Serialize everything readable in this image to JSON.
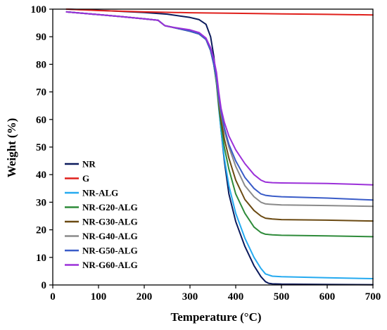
{
  "chart_data": {
    "type": "line",
    "xlabel": "Temperature (°C)",
    "ylabel": "Weight (%)",
    "xlim": [
      0,
      700
    ],
    "ylim": [
      0,
      100
    ],
    "xticks": [
      0,
      100,
      200,
      300,
      400,
      500,
      600,
      700
    ],
    "yticks": [
      0,
      10,
      20,
      30,
      40,
      50,
      60,
      70,
      80,
      90,
      100
    ],
    "grid": false,
    "legend_position": "bottom-left",
    "series": [
      {
        "name": "NR",
        "color": "#0b1a5c",
        "x": [
          30,
          100,
          200,
          250,
          300,
          320,
          335,
          345,
          352,
          358,
          363,
          368,
          375,
          385,
          400,
          420,
          440,
          455,
          465,
          472,
          480,
          500,
          600,
          700
        ],
        "y": [
          100,
          99.6,
          98.8,
          98.2,
          97,
          96.2,
          94.5,
          90,
          83,
          74,
          65,
          56,
          45,
          33,
          23,
          14,
          7,
          3,
          1.2,
          0.6,
          0.4,
          0.3,
          0.2,
          0.1
        ]
      },
      {
        "name": "G",
        "color": "#e0201c",
        "x": [
          30,
          100,
          200,
          300,
          400,
          500,
          600,
          700
        ],
        "y": [
          100,
          99.5,
          99,
          98.7,
          98.5,
          98.3,
          98.1,
          97.9
        ]
      },
      {
        "name": "NR-ALG",
        "color": "#25aaf0",
        "x": [
          30,
          100,
          150,
          200,
          230,
          245,
          260,
          300,
          320,
          335,
          345,
          352,
          358,
          363,
          368,
          375,
          385,
          400,
          420,
          440,
          455,
          465,
          480,
          500,
          600,
          700
        ],
        "y": [
          99,
          98,
          97.3,
          96.5,
          96,
          94,
          93.5,
          92,
          91,
          89,
          85,
          80,
          73,
          64,
          56,
          46,
          36,
          26,
          17,
          10,
          6,
          4,
          3.2,
          3,
          2.6,
          2.3
        ]
      },
      {
        "name": "NR-G20-ALG",
        "color": "#2e8b3a",
        "x": [
          30,
          100,
          150,
          200,
          230,
          245,
          260,
          300,
          320,
          335,
          345,
          352,
          358,
          363,
          368,
          375,
          385,
          400,
          420,
          440,
          455,
          465,
          480,
          500,
          600,
          700
        ],
        "y": [
          99,
          98,
          97.3,
          96.5,
          96,
          94,
          93.5,
          92,
          91,
          89,
          85,
          80,
          73,
          65,
          58,
          50,
          42,
          33,
          26,
          21,
          19,
          18.4,
          18.2,
          18,
          17.8,
          17.5
        ]
      },
      {
        "name": "NR-G30-ALG",
        "color": "#6b4a12",
        "x": [
          30,
          100,
          150,
          200,
          230,
          245,
          260,
          300,
          320,
          335,
          345,
          352,
          358,
          363,
          368,
          375,
          385,
          400,
          420,
          440,
          455,
          465,
          480,
          500,
          600,
          700
        ],
        "y": [
          99,
          98,
          97.3,
          96.5,
          96,
          94,
          93.5,
          92,
          91,
          89,
          85,
          80,
          74,
          66,
          60,
          53,
          46,
          38,
          31,
          27,
          25,
          24.2,
          23.9,
          23.7,
          23.5,
          23.2
        ]
      },
      {
        "name": "NR-G40-ALG",
        "color": "#8a8a8a",
        "x": [
          30,
          100,
          150,
          200,
          230,
          245,
          260,
          300,
          320,
          335,
          345,
          352,
          358,
          363,
          368,
          375,
          385,
          400,
          420,
          440,
          455,
          465,
          480,
          500,
          600,
          700
        ],
        "y": [
          99,
          98,
          97.3,
          96.5,
          96,
          94,
          93.5,
          92,
          91,
          89,
          85,
          80,
          74,
          67,
          62,
          56,
          50,
          43,
          36,
          32,
          30,
          29.4,
          29.2,
          29,
          28.8,
          28.5
        ]
      },
      {
        "name": "NR-G50-ALG",
        "color": "#3a5cc8",
        "x": [
          30,
          100,
          150,
          200,
          230,
          245,
          260,
          300,
          320,
          335,
          345,
          352,
          358,
          363,
          368,
          375,
          385,
          400,
          420,
          440,
          455,
          465,
          480,
          500,
          600,
          700
        ],
        "y": [
          99,
          98,
          97.3,
          96.5,
          96,
          94,
          93.5,
          92,
          91,
          89,
          85,
          80,
          75,
          68,
          63,
          57,
          51,
          45,
          39,
          35,
          33,
          32.5,
          32.2,
          32,
          31.5,
          30.8
        ]
      },
      {
        "name": "NR-G60-ALG",
        "color": "#9b30d9",
        "x": [
          30,
          100,
          150,
          200,
          230,
          245,
          260,
          300,
          320,
          335,
          345,
          352,
          358,
          363,
          368,
          375,
          385,
          400,
          420,
          440,
          455,
          465,
          480,
          500,
          600,
          700
        ],
        "y": [
          99,
          98,
          97.3,
          96.5,
          96,
          94,
          93.5,
          92.5,
          91.5,
          89.5,
          86,
          82,
          77,
          70,
          64,
          59,
          54,
          49,
          44,
          40,
          38,
          37.3,
          37.1,
          37,
          36.8,
          36.3
        ]
      }
    ]
  }
}
